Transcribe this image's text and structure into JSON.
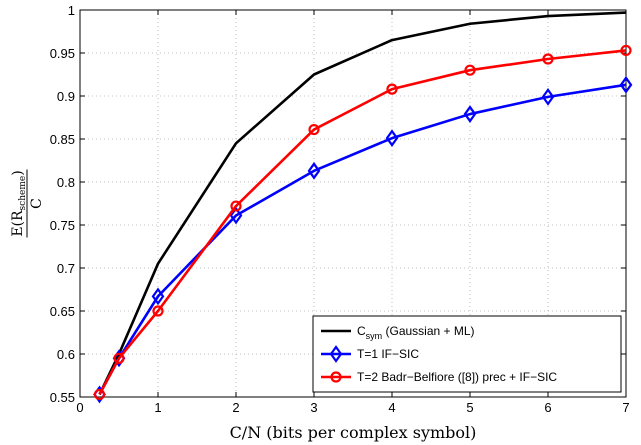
{
  "chart_data": {
    "type": "line",
    "xlabel": "C/N (bits per complex symbol)",
    "ylabel": {
      "numerator_prefix": "E(R",
      "numerator_subscript": "scheme",
      "numerator_suffix": ")",
      "denominator": "C"
    },
    "xlim": [
      0,
      7
    ],
    "ylim": [
      0.55,
      1.0
    ],
    "x_ticks": [
      0,
      1,
      2,
      3,
      4,
      5,
      6,
      7
    ],
    "y_ticks": [
      0.55,
      0.6,
      0.65,
      0.7,
      0.75,
      0.8,
      0.85,
      0.9,
      0.95,
      1.0
    ],
    "x_tick_labels": [
      "0",
      "1",
      "2",
      "3",
      "4",
      "5",
      "6",
      "7"
    ],
    "y_tick_labels": [
      "0.55",
      "0.6",
      "0.65",
      "0.7",
      "0.75",
      "0.8",
      "0.85",
      "0.9",
      "0.95",
      "1"
    ],
    "grid": true,
    "grid_style": "dotted",
    "legend_position": "bottom-right",
    "series": [
      {
        "name_main": "C",
        "name_subscript": "sym",
        "name_rest": " (Gaussian + ML)",
        "color": "#000000",
        "marker": "none",
        "x": [
          0.25,
          0.5,
          1,
          2,
          3,
          4,
          5,
          6,
          7
        ],
        "y": [
          0.553,
          0.6,
          0.705,
          0.845,
          0.925,
          0.965,
          0.984,
          0.993,
          0.997
        ]
      },
      {
        "name_main": "T=1 IF−SIC",
        "name_subscript": "",
        "name_rest": "",
        "color": "#0000ff",
        "marker": "diamond",
        "x": [
          0.25,
          0.5,
          1,
          2,
          3,
          4,
          5,
          6,
          7
        ],
        "y": [
          0.553,
          0.595,
          0.667,
          0.761,
          0.813,
          0.851,
          0.879,
          0.899,
          0.913
        ]
      },
      {
        "name_main": "T=2 Badr−Belfiore ([8]) prec + IF−SIC",
        "name_subscript": "",
        "name_rest": "",
        "color": "#ff0000",
        "marker": "circle",
        "x": [
          0.25,
          0.5,
          1,
          2,
          3,
          4,
          5,
          6,
          7
        ],
        "y": [
          0.553,
          0.595,
          0.65,
          0.772,
          0.861,
          0.908,
          0.93,
          0.943,
          0.953
        ]
      }
    ]
  }
}
